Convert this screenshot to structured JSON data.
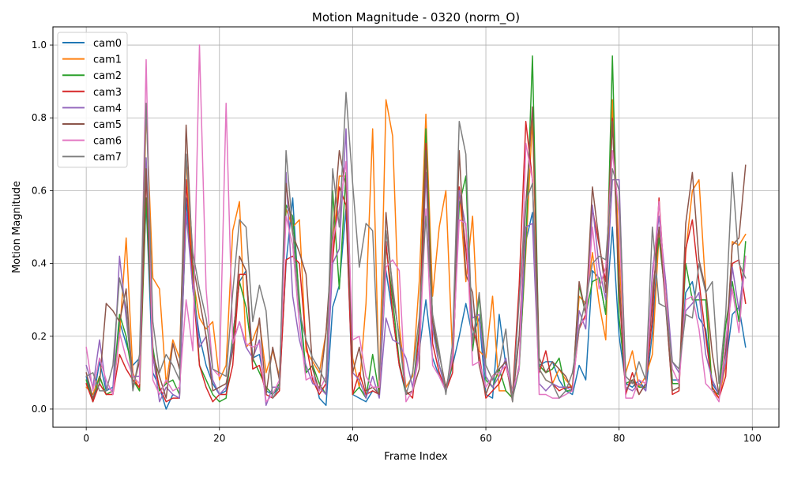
{
  "chart_data": {
    "type": "line",
    "title": "Motion Magnitude - 0320 (norm_O)",
    "xlabel": "Frame Index",
    "ylabel": "Motion Magnitude",
    "xlim": [
      -5,
      104
    ],
    "ylim": [
      -0.05,
      1.05
    ],
    "xticks": [
      0,
      20,
      40,
      60,
      80,
      100
    ],
    "yticks": [
      0.0,
      0.2,
      0.4,
      0.6,
      0.8,
      1.0
    ],
    "xtick_labels": [
      "0",
      "20",
      "40",
      "60",
      "80",
      "100"
    ],
    "ytick_labels": [
      "0.0",
      "0.2",
      "0.4",
      "0.6",
      "0.8",
      "1.0"
    ],
    "grid": true,
    "legend_position": "upper left",
    "x": [
      0,
      1,
      2,
      3,
      4,
      5,
      6,
      7,
      8,
      9,
      10,
      11,
      12,
      13,
      14,
      15,
      16,
      17,
      18,
      19,
      20,
      21,
      22,
      23,
      24,
      25,
      26,
      27,
      28,
      29,
      30,
      31,
      32,
      33,
      34,
      35,
      36,
      37,
      38,
      39,
      40,
      41,
      42,
      43,
      44,
      45,
      46,
      47,
      48,
      49,
      50,
      51,
      52,
      53,
      54,
      55,
      56,
      57,
      58,
      59,
      60,
      61,
      62,
      63,
      64,
      65,
      66,
      67,
      68,
      69,
      70,
      71,
      72,
      73,
      74,
      75,
      76,
      77,
      78,
      79,
      80,
      81,
      82,
      83,
      84,
      85,
      86,
      87,
      88,
      89,
      90,
      91,
      92,
      93,
      94,
      95,
      96,
      97,
      98,
      99
    ],
    "series": [
      {
        "name": "cam0",
        "color": "#1f77b4",
        "values": [
          0.09,
          0.02,
          0.13,
          0.05,
          0.06,
          0.24,
          0.18,
          0.12,
          0.14,
          0.57,
          0.1,
          0.06,
          0.0,
          0.04,
          0.03,
          0.58,
          0.33,
          0.2,
          0.12,
          0.07,
          0.04,
          0.05,
          0.2,
          0.35,
          0.38,
          0.14,
          0.15,
          0.05,
          0.04,
          0.06,
          0.4,
          0.58,
          0.28,
          0.1,
          0.12,
          0.03,
          0.01,
          0.28,
          0.34,
          0.55,
          0.04,
          0.03,
          0.02,
          0.05,
          0.04,
          0.38,
          0.26,
          0.12,
          0.04,
          0.05,
          0.16,
          0.3,
          0.14,
          0.09,
          0.05,
          0.12,
          0.2,
          0.29,
          0.2,
          0.25,
          0.04,
          0.03,
          0.26,
          0.12,
          0.04,
          0.2,
          0.46,
          0.54,
          0.12,
          0.13,
          0.13,
          0.08,
          0.05,
          0.04,
          0.12,
          0.08,
          0.38,
          0.36,
          0.26,
          0.5,
          0.2,
          0.07,
          0.06,
          0.08,
          0.05,
          0.21,
          0.49,
          0.3,
          0.08,
          0.08,
          0.32,
          0.35,
          0.25,
          0.22,
          0.07,
          0.04,
          0.12,
          0.26,
          0.28,
          0.17
        ]
      },
      {
        "name": "cam1",
        "color": "#ff7f0e",
        "values": [
          0.06,
          0.04,
          0.09,
          0.04,
          0.05,
          0.2,
          0.47,
          0.1,
          0.05,
          0.82,
          0.36,
          0.33,
          0.07,
          0.19,
          0.14,
          0.69,
          0.36,
          0.25,
          0.22,
          0.24,
          0.08,
          0.12,
          0.49,
          0.57,
          0.17,
          0.19,
          0.24,
          0.1,
          0.16,
          0.09,
          0.55,
          0.5,
          0.52,
          0.16,
          0.13,
          0.1,
          0.21,
          0.44,
          0.64,
          0.64,
          0.14,
          0.06,
          0.29,
          0.77,
          0.05,
          0.85,
          0.75,
          0.23,
          0.06,
          0.09,
          0.35,
          0.81,
          0.31,
          0.5,
          0.6,
          0.14,
          0.61,
          0.35,
          0.53,
          0.16,
          0.14,
          0.31,
          0.05,
          0.05,
          0.03,
          0.12,
          0.43,
          0.8,
          0.11,
          0.08,
          0.07,
          0.11,
          0.08,
          0.06,
          0.31,
          0.29,
          0.43,
          0.29,
          0.19,
          0.85,
          0.42,
          0.1,
          0.16,
          0.06,
          0.09,
          0.15,
          0.48,
          0.35,
          0.07,
          0.07,
          0.43,
          0.6,
          0.63,
          0.33,
          0.05,
          0.03,
          0.12,
          0.46,
          0.45,
          0.48
        ]
      },
      {
        "name": "cam2",
        "color": "#2ca02c",
        "values": [
          0.08,
          0.02,
          0.09,
          0.04,
          0.05,
          0.26,
          0.2,
          0.08,
          0.05,
          0.58,
          0.17,
          0.05,
          0.07,
          0.08,
          0.04,
          0.53,
          0.4,
          0.12,
          0.08,
          0.04,
          0.02,
          0.03,
          0.2,
          0.35,
          0.28,
          0.14,
          0.1,
          0.06,
          0.04,
          0.07,
          0.56,
          0.53,
          0.3,
          0.1,
          0.12,
          0.07,
          0.04,
          0.6,
          0.33,
          0.65,
          0.04,
          0.06,
          0.03,
          0.15,
          0.04,
          0.45,
          0.3,
          0.13,
          0.04,
          0.05,
          0.22,
          0.77,
          0.24,
          0.12,
          0.06,
          0.12,
          0.56,
          0.64,
          0.16,
          0.31,
          0.08,
          0.06,
          0.11,
          0.05,
          0.03,
          0.11,
          0.45,
          0.97,
          0.12,
          0.1,
          0.11,
          0.14,
          0.05,
          0.05,
          0.34,
          0.26,
          0.35,
          0.36,
          0.26,
          0.97,
          0.25,
          0.07,
          0.08,
          0.06,
          0.06,
          0.32,
          0.47,
          0.3,
          0.07,
          0.07,
          0.4,
          0.3,
          0.3,
          0.3,
          0.05,
          0.04,
          0.23,
          0.35,
          0.24,
          0.46
        ]
      },
      {
        "name": "cam3",
        "color": "#d62728",
        "values": [
          0.07,
          0.02,
          0.07,
          0.04,
          0.04,
          0.15,
          0.11,
          0.08,
          0.06,
          0.65,
          0.14,
          0.06,
          0.02,
          0.03,
          0.03,
          0.63,
          0.34,
          0.12,
          0.06,
          0.02,
          0.04,
          0.04,
          0.12,
          0.37,
          0.37,
          0.11,
          0.12,
          0.04,
          0.03,
          0.05,
          0.41,
          0.42,
          0.4,
          0.18,
          0.08,
          0.04,
          0.07,
          0.41,
          0.61,
          0.56,
          0.04,
          0.1,
          0.04,
          0.05,
          0.04,
          0.46,
          0.26,
          0.12,
          0.05,
          0.03,
          0.21,
          0.73,
          0.18,
          0.1,
          0.05,
          0.1,
          0.61,
          0.44,
          0.23,
          0.15,
          0.03,
          0.05,
          0.07,
          0.12,
          0.04,
          0.34,
          0.79,
          0.63,
          0.1,
          0.16,
          0.07,
          0.05,
          0.06,
          0.06,
          0.22,
          0.26,
          0.55,
          0.45,
          0.35,
          0.8,
          0.33,
          0.04,
          0.1,
          0.04,
          0.07,
          0.25,
          0.58,
          0.29,
          0.04,
          0.05,
          0.44,
          0.52,
          0.35,
          0.2,
          0.06,
          0.03,
          0.09,
          0.4,
          0.41,
          0.29
        ]
      },
      {
        "name": "cam4",
        "color": "#9467bd",
        "values": [
          0.12,
          0.06,
          0.19,
          0.06,
          0.05,
          0.42,
          0.25,
          0.09,
          0.09,
          0.69,
          0.15,
          0.02,
          0.06,
          0.04,
          0.03,
          0.54,
          0.33,
          0.17,
          0.2,
          0.08,
          0.04,
          0.06,
          0.18,
          0.24,
          0.17,
          0.14,
          0.19,
          0.01,
          0.06,
          0.06,
          0.65,
          0.31,
          0.19,
          0.12,
          0.07,
          0.06,
          0.04,
          0.4,
          0.44,
          0.77,
          0.1,
          0.08,
          0.03,
          0.09,
          0.03,
          0.25,
          0.19,
          0.18,
          0.14,
          0.06,
          0.17,
          0.65,
          0.22,
          0.12,
          0.05,
          0.15,
          0.6,
          0.5,
          0.25,
          0.26,
          0.09,
          0.06,
          0.09,
          0.14,
          0.03,
          0.12,
          0.5,
          0.51,
          0.07,
          0.05,
          0.07,
          0.06,
          0.06,
          0.05,
          0.27,
          0.22,
          0.56,
          0.39,
          0.3,
          0.63,
          0.63,
          0.06,
          0.05,
          0.07,
          0.05,
          0.38,
          0.53,
          0.35,
          0.13,
          0.1,
          0.27,
          0.29,
          0.32,
          0.15,
          0.08,
          0.04,
          0.13,
          0.39,
          0.27,
          0.42
        ]
      },
      {
        "name": "cam5",
        "color": "#8c564b",
        "values": [
          0.1,
          0.03,
          0.07,
          0.29,
          0.27,
          0.24,
          0.33,
          0.06,
          0.13,
          0.66,
          0.15,
          0.09,
          0.03,
          0.18,
          0.11,
          0.78,
          0.4,
          0.3,
          0.2,
          0.05,
          0.06,
          0.07,
          0.16,
          0.42,
          0.38,
          0.13,
          0.25,
          0.04,
          0.17,
          0.08,
          0.62,
          0.48,
          0.43,
          0.37,
          0.11,
          0.05,
          0.21,
          0.48,
          0.71,
          0.61,
          0.1,
          0.17,
          0.05,
          0.06,
          0.04,
          0.54,
          0.32,
          0.2,
          0.04,
          0.05,
          0.11,
          0.71,
          0.24,
          0.15,
          0.06,
          0.13,
          0.71,
          0.37,
          0.32,
          0.12,
          0.04,
          0.09,
          0.11,
          0.13,
          0.02,
          0.2,
          0.56,
          0.83,
          0.14,
          0.1,
          0.13,
          0.11,
          0.09,
          0.05,
          0.35,
          0.26,
          0.61,
          0.46,
          0.32,
          0.79,
          0.36,
          0.05,
          0.08,
          0.04,
          0.07,
          0.3,
          0.5,
          0.28,
          0.05,
          0.06,
          0.51,
          0.65,
          0.41,
          0.33,
          0.15,
          0.04,
          0.16,
          0.45,
          0.47,
          0.67
        ]
      },
      {
        "name": "cam6",
        "color": "#e377c2",
        "values": [
          0.17,
          0.05,
          0.14,
          0.08,
          0.04,
          0.21,
          0.14,
          0.09,
          0.07,
          0.96,
          0.08,
          0.04,
          0.08,
          0.05,
          0.06,
          0.3,
          0.16,
          1.0,
          0.33,
          0.11,
          0.09,
          0.84,
          0.18,
          0.24,
          0.18,
          0.17,
          0.18,
          0.02,
          0.04,
          0.08,
          0.53,
          0.45,
          0.23,
          0.08,
          0.09,
          0.05,
          0.09,
          0.46,
          0.55,
          0.68,
          0.19,
          0.2,
          0.09,
          0.06,
          0.06,
          0.39,
          0.41,
          0.38,
          0.02,
          0.05,
          0.15,
          0.55,
          0.12,
          0.09,
          0.05,
          0.14,
          0.52,
          0.51,
          0.12,
          0.13,
          0.06,
          0.09,
          0.1,
          0.12,
          0.05,
          0.11,
          0.73,
          0.63,
          0.04,
          0.04,
          0.03,
          0.03,
          0.04,
          0.05,
          0.23,
          0.25,
          0.5,
          0.33,
          0.39,
          0.71,
          0.53,
          0.03,
          0.03,
          0.08,
          0.07,
          0.35,
          0.57,
          0.3,
          0.11,
          0.07,
          0.3,
          0.31,
          0.22,
          0.07,
          0.05,
          0.02,
          0.19,
          0.33,
          0.21,
          0.42
        ]
      },
      {
        "name": "cam7",
        "color": "#7f7f7f",
        "values": [
          0.09,
          0.1,
          0.05,
          0.05,
          0.12,
          0.36,
          0.28,
          0.05,
          0.15,
          0.84,
          0.24,
          0.1,
          0.15,
          0.12,
          0.08,
          0.7,
          0.43,
          0.33,
          0.25,
          0.11,
          0.1,
          0.09,
          0.32,
          0.52,
          0.5,
          0.24,
          0.34,
          0.27,
          0.03,
          0.06,
          0.71,
          0.49,
          0.27,
          0.19,
          0.14,
          0.11,
          0.07,
          0.66,
          0.5,
          0.87,
          0.62,
          0.39,
          0.51,
          0.49,
          0.08,
          0.49,
          0.34,
          0.19,
          0.04,
          0.1,
          0.25,
          0.53,
          0.26,
          0.16,
          0.04,
          0.18,
          0.79,
          0.7,
          0.18,
          0.32,
          0.12,
          0.08,
          0.12,
          0.22,
          0.02,
          0.3,
          0.57,
          0.62,
          0.11,
          0.08,
          0.07,
          0.03,
          0.05,
          0.1,
          0.22,
          0.3,
          0.4,
          0.42,
          0.41,
          0.66,
          0.6,
          0.09,
          0.07,
          0.13,
          0.08,
          0.5,
          0.29,
          0.28,
          0.13,
          0.11,
          0.26,
          0.25,
          0.4,
          0.32,
          0.35,
          0.07,
          0.26,
          0.65,
          0.4,
          0.36
        ]
      }
    ]
  }
}
